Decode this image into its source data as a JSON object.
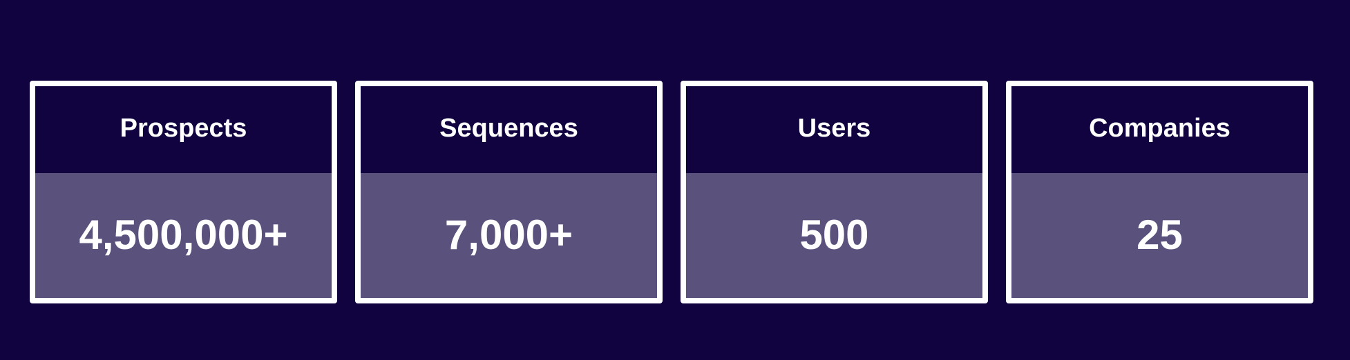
{
  "stats": [
    {
      "label": "Prospects",
      "value": "4,500,000+"
    },
    {
      "label": "Sequences",
      "value": "7,000+"
    },
    {
      "label": "Users",
      "value": "500"
    },
    {
      "label": "Companies",
      "value": "25"
    }
  ],
  "colors": {
    "background": "#100340",
    "value_panel": "#5a517d",
    "border": "#ffffff",
    "text": "#ffffff"
  }
}
